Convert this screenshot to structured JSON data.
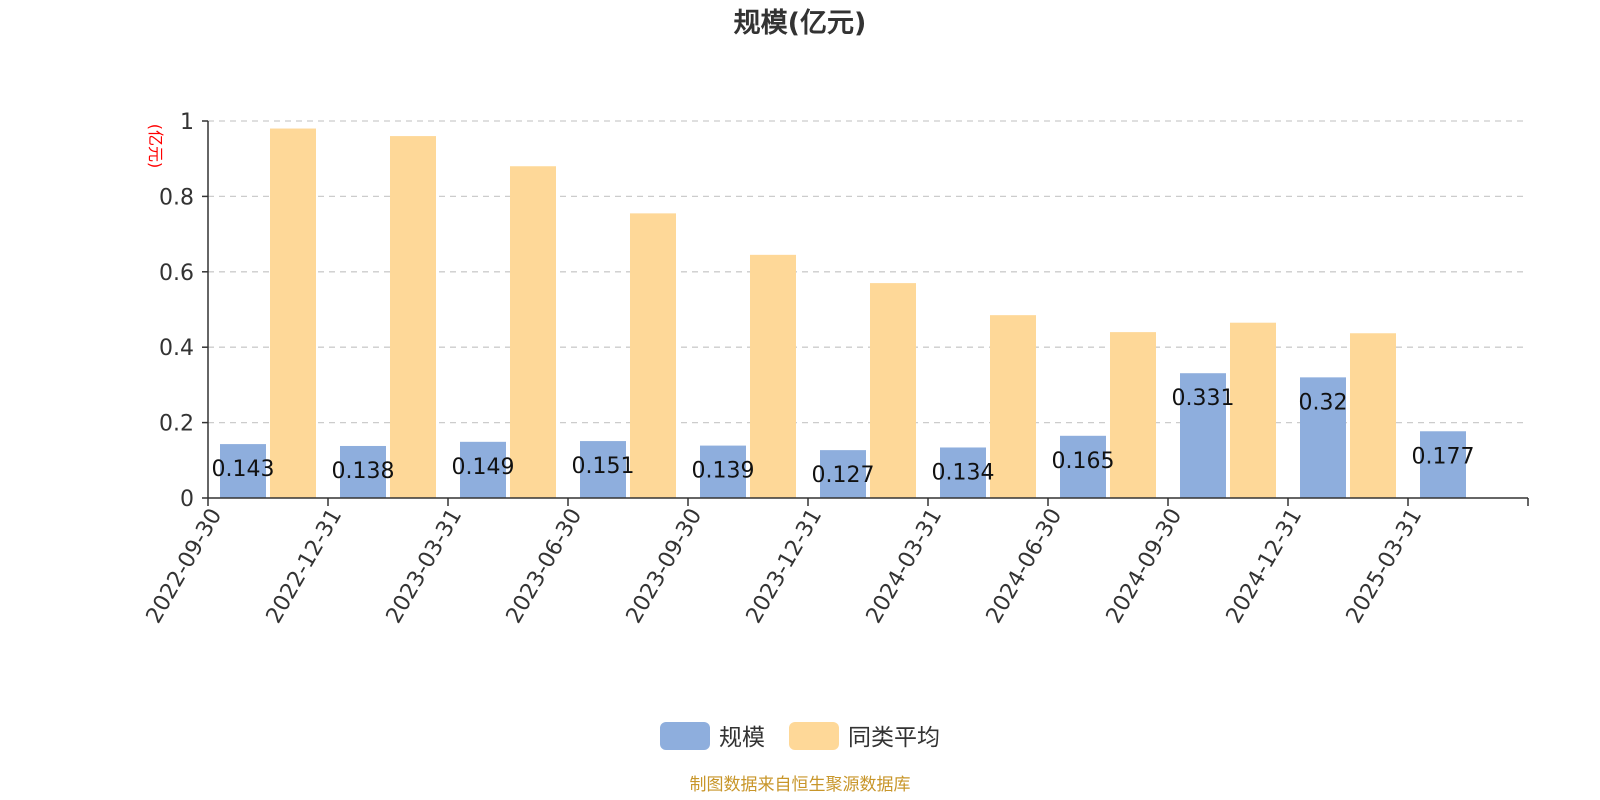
{
  "chart_data": {
    "type": "bar",
    "title": "规模(亿元)",
    "ylabel": "(亿元)",
    "ylim": [
      0,
      1
    ],
    "yticks": [
      "0",
      "0.2",
      "0.4",
      "0.6",
      "0.8",
      "1"
    ],
    "grid": "horizontal-dashed",
    "legend_position": "bottom-center",
    "categories": [
      "2022-09-30",
      "2022-12-31",
      "2023-03-31",
      "2023-06-30",
      "2023-09-30",
      "2023-12-31",
      "2024-03-31",
      "2024-06-30",
      "2024-09-30",
      "2024-12-31",
      "2025-03-31"
    ],
    "series": [
      {
        "name": "规模",
        "color": "#8eaedd",
        "values": [
          0.143,
          0.138,
          0.149,
          0.151,
          0.139,
          0.127,
          0.134,
          0.165,
          0.331,
          0.32,
          0.177
        ],
        "labels": [
          "0.143",
          "0.138",
          "0.149",
          "0.151",
          "0.139",
          "0.127",
          "0.134",
          "0.165",
          "0.331",
          "0.32",
          "0.177"
        ]
      },
      {
        "name": "同类平均",
        "color": "#fed898",
        "values": [
          0.98,
          0.96,
          0.88,
          0.755,
          0.645,
          0.57,
          0.485,
          0.44,
          0.465,
          0.437,
          null
        ]
      }
    ],
    "source": "制图数据来自恒生聚源数据库"
  },
  "colors": {
    "unit_label": "#ff0000",
    "source": "#c8962a",
    "axis": "#333333",
    "grid": "#cccccc"
  }
}
